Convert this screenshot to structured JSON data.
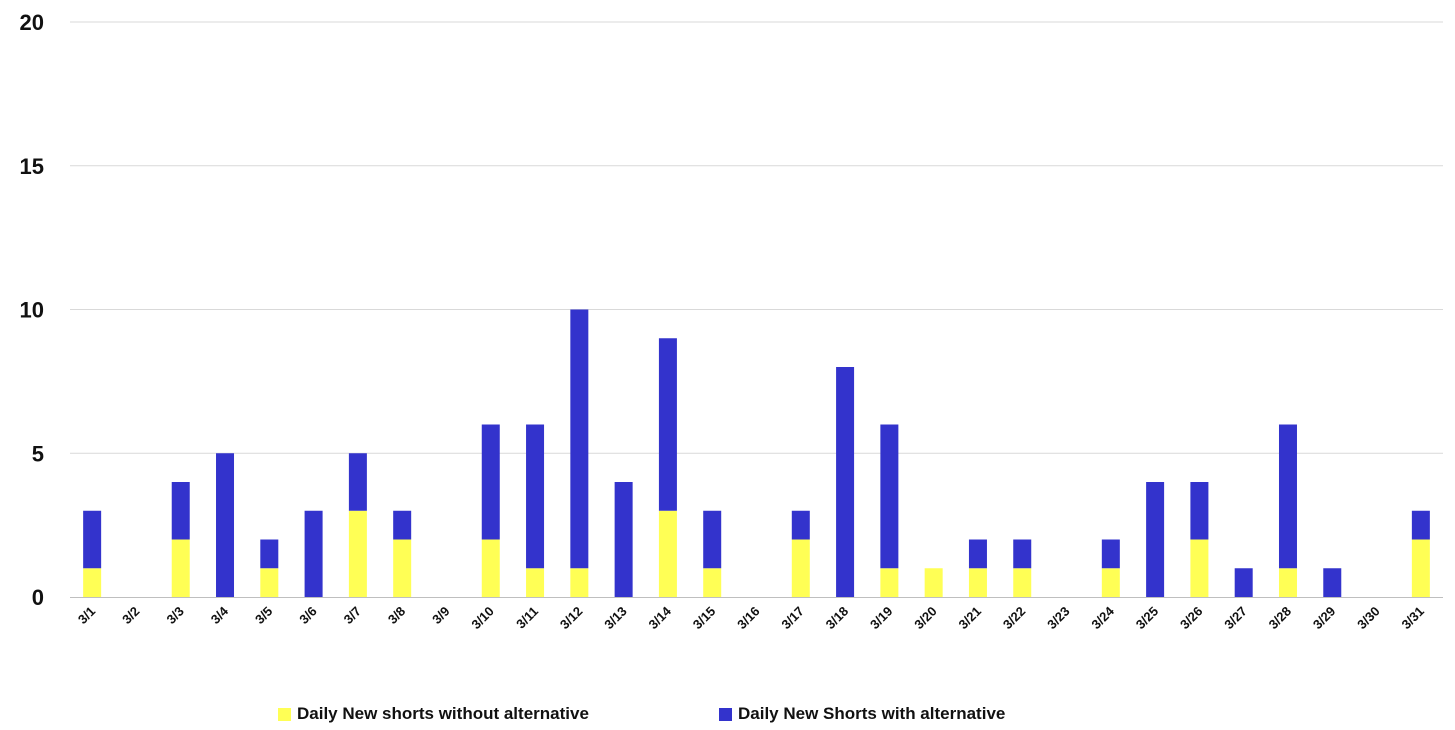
{
  "chart_data": {
    "type": "bar",
    "stacked": true,
    "categories": [
      "3/1",
      "3/2",
      "3/3",
      "3/4",
      "3/5",
      "3/6",
      "3/7",
      "3/8",
      "3/9",
      "3/10",
      "3/11",
      "3/12",
      "3/13",
      "3/14",
      "3/15",
      "3/16",
      "3/17",
      "3/18",
      "3/19",
      "3/20",
      "3/21",
      "3/22",
      "3/23",
      "3/24",
      "3/25",
      "3/26",
      "3/27",
      "3/28",
      "3/29",
      "3/30",
      "3/31"
    ],
    "series": [
      {
        "name": "Daily New shorts without alternative",
        "color": "#ffff55",
        "values": [
          1,
          0,
          2,
          0,
          1,
          0,
          3,
          2,
          0,
          2,
          1,
          1,
          0,
          3,
          1,
          0,
          2,
          0,
          1,
          1,
          1,
          1,
          0,
          1,
          0,
          2,
          0,
          1,
          0,
          0,
          2
        ]
      },
      {
        "name": "Daily New Shorts with alternative",
        "color": "#3333cc",
        "values": [
          2,
          0,
          2,
          5,
          1,
          3,
          2,
          1,
          0,
          4,
          5,
          9,
          4,
          6,
          2,
          0,
          1,
          8,
          5,
          0,
          1,
          1,
          0,
          1,
          4,
          2,
          1,
          5,
          1,
          0,
          1
        ]
      }
    ],
    "ylim": [
      0,
      20
    ],
    "yticks": [
      "0",
      "5",
      "10",
      "15",
      "20"
    ],
    "grid": true,
    "legend_position": "bottom",
    "title": "",
    "xlabel": "",
    "ylabel": ""
  }
}
